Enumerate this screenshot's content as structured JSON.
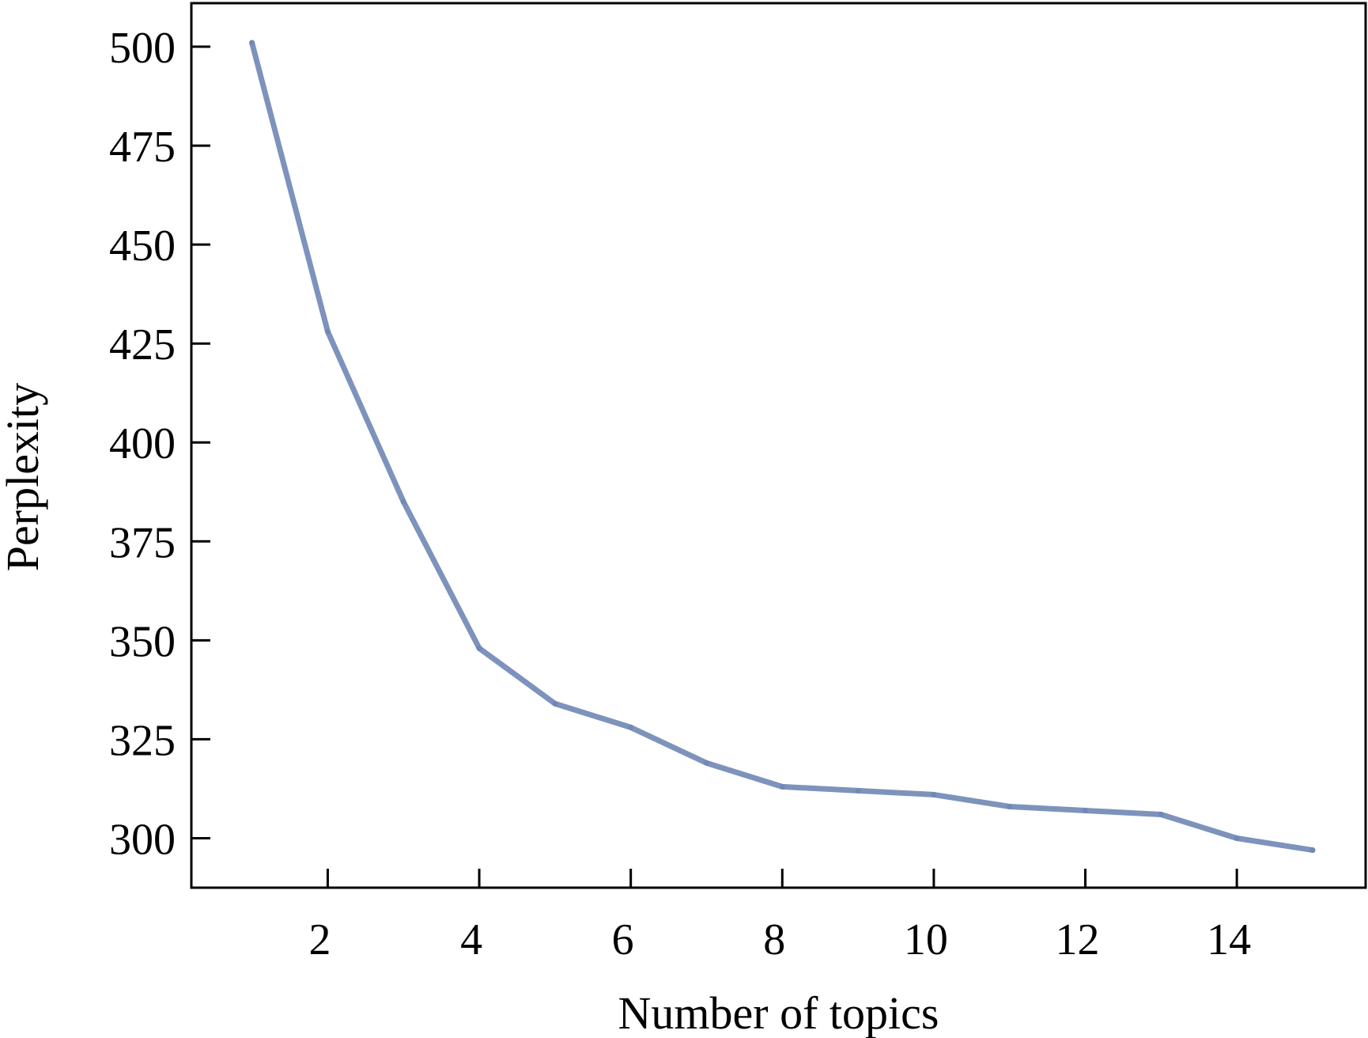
{
  "chart_data": {
    "type": "line",
    "title": "",
    "xlabel": "Number of topics",
    "ylabel": "Perplexity",
    "xlim": [
      0.2,
      15.7
    ],
    "ylim": [
      287.5,
      511
    ],
    "x_ticks": [
      2,
      4,
      6,
      8,
      10,
      12,
      14
    ],
    "y_ticks": [
      300,
      325,
      350,
      375,
      400,
      425,
      450,
      475,
      500
    ],
    "grid": false,
    "series": [
      {
        "color": "#6f87b5",
        "x": [
          1,
          2,
          3,
          4,
          5,
          6,
          7,
          8,
          9,
          10,
          11,
          12,
          13,
          14,
          15
        ],
        "y": [
          501,
          428,
          385,
          348,
          334,
          328,
          319,
          313,
          312,
          311,
          308,
          307,
          306,
          300,
          297
        ]
      }
    ]
  }
}
